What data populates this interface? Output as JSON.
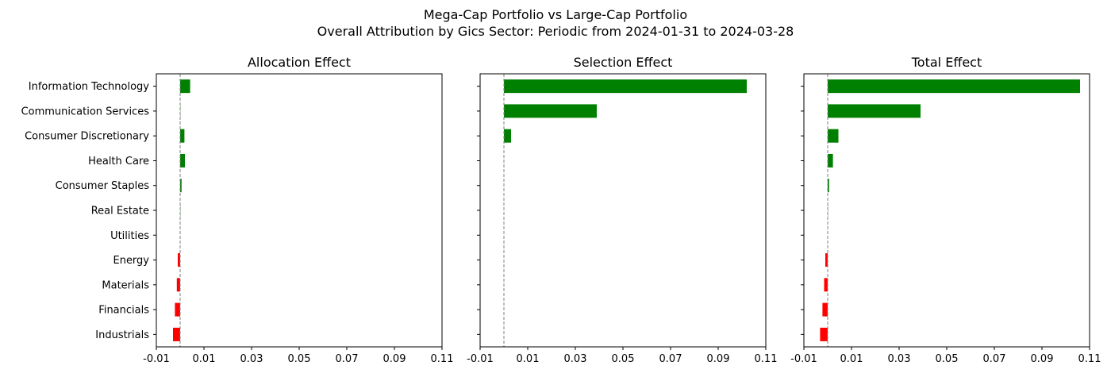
{
  "figure": {
    "title_line1": "Mega-Cap Portfolio vs Large-Cap Portfolio",
    "title_line2": "Overall Attribution by Gics Sector: Periodic from 2024-01-31 to 2024-03-28"
  },
  "colors": {
    "positive": "#008000",
    "negative": "#ff0000",
    "zero_line": "#808080"
  },
  "chart_data": [
    {
      "type": "bar",
      "orientation": "horizontal",
      "title": "Allocation Effect",
      "categories": [
        "Information Technology",
        "Communication Services",
        "Consumer Discretionary",
        "Health Care",
        "Consumer Staples",
        "Real Estate",
        "Utilities",
        "Energy",
        "Materials",
        "Financials",
        "Industrials"
      ],
      "values": [
        0.0042,
        0.0001,
        0.0018,
        0.002,
        0.0006,
        0.0001,
        0.0,
        -0.001,
        -0.0014,
        -0.0022,
        -0.003
      ],
      "xlim": [
        -0.01,
        0.11
      ],
      "xticks": [
        "-0.01",
        "0.01",
        "0.03",
        "0.05",
        "0.07",
        "0.09",
        "0.11"
      ],
      "xtick_values": [
        -0.01,
        0.01,
        0.03,
        0.05,
        0.07,
        0.09,
        0.11
      ],
      "grid": false
    },
    {
      "type": "bar",
      "orientation": "horizontal",
      "title": "Selection Effect",
      "categories": [
        "Information Technology",
        "Communication Services",
        "Consumer Discretionary",
        "Health Care",
        "Consumer Staples",
        "Real Estate",
        "Utilities",
        "Energy",
        "Materials",
        "Financials",
        "Industrials"
      ],
      "values": [
        0.102,
        0.039,
        0.003,
        0.0,
        0.0,
        0.0,
        0.0,
        0.0,
        0.0,
        0.0,
        0.0
      ],
      "xlim": [
        -0.01,
        0.11
      ],
      "xticks": [
        "-0.01",
        "0.01",
        "0.03",
        "0.05",
        "0.07",
        "0.09",
        "0.11"
      ],
      "xtick_values": [
        -0.01,
        0.01,
        0.03,
        0.05,
        0.07,
        0.09,
        0.11
      ],
      "grid": false
    },
    {
      "type": "bar",
      "orientation": "horizontal",
      "title": "Total Effect",
      "categories": [
        "Information Technology",
        "Communication Services",
        "Consumer Discretionary",
        "Health Care",
        "Consumer Staples",
        "Real Estate",
        "Utilities",
        "Energy",
        "Materials",
        "Financials",
        "Industrials"
      ],
      "values": [
        0.106,
        0.039,
        0.0045,
        0.0022,
        0.0006,
        0.0001,
        0.0,
        -0.001,
        -0.0015,
        -0.0022,
        -0.0032
      ],
      "xlim": [
        -0.01,
        0.11
      ],
      "xticks": [
        "-0.01",
        "0.01",
        "0.03",
        "0.05",
        "0.07",
        "0.09",
        "0.11"
      ],
      "xtick_values": [
        -0.01,
        0.01,
        0.03,
        0.05,
        0.07,
        0.09,
        0.11
      ],
      "grid": false
    }
  ]
}
